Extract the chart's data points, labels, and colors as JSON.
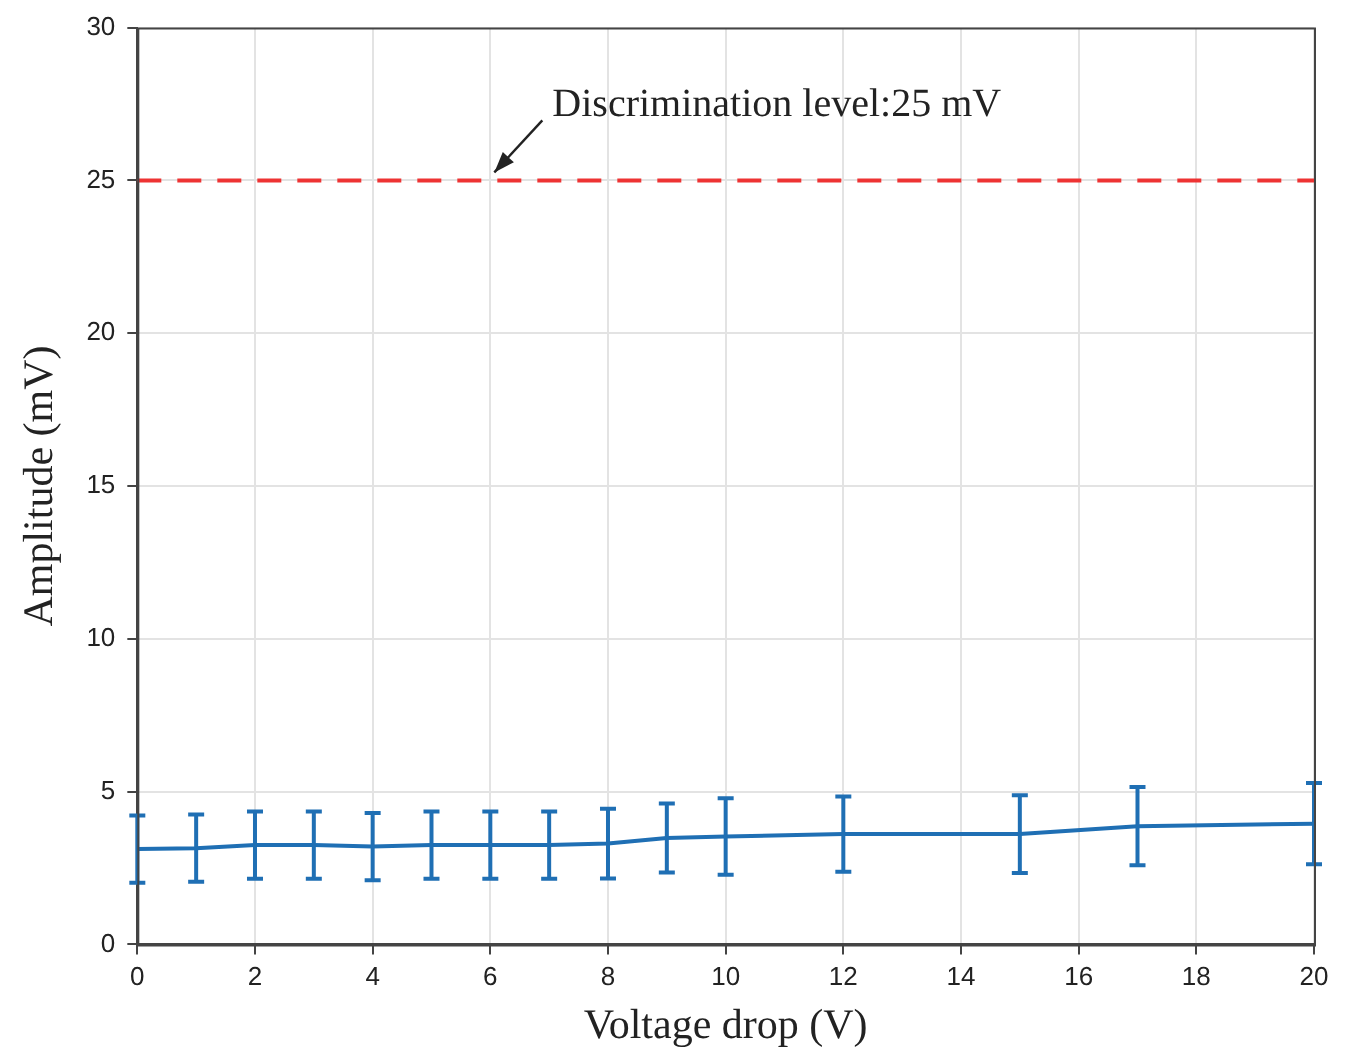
{
  "chart_data": {
    "type": "line",
    "xlabel": "Voltage drop (V)",
    "ylabel": "Amplitude (mV)",
    "x": [
      0,
      1,
      2,
      3,
      4,
      5,
      6,
      7,
      8,
      9,
      10,
      12,
      15,
      17,
      20
    ],
    "series": [
      {
        "color": "#1f6fb4",
        "values": [
          3.12,
          3.15,
          3.25,
          3.25,
          3.2,
          3.25,
          3.25,
          3.25,
          3.3,
          3.48,
          3.53,
          3.61,
          3.61,
          3.87,
          3.95
        ],
        "errors": [
          1.1,
          1.1,
          1.1,
          1.1,
          1.1,
          1.1,
          1.1,
          1.1,
          1.14,
          1.13,
          1.25,
          1.23,
          1.27,
          1.28,
          1.33
        ]
      }
    ],
    "xlim": [
      0,
      20
    ],
    "xticks": [
      0,
      2,
      4,
      6,
      8,
      10,
      12,
      14,
      16,
      18,
      20
    ],
    "ylim": [
      0,
      30
    ],
    "yticks": [
      0,
      5,
      10,
      15,
      20,
      25,
      30
    ],
    "ref_lines": [
      {
        "axis": "y",
        "value": 25,
        "color": "#ee3333",
        "line_style": "dashed"
      }
    ],
    "annotations": [
      {
        "text": "Discrimination level:25 mV",
        "x": 6,
        "y": 25
      }
    ],
    "grid": true,
    "legend": false,
    "marker": "none",
    "line_style": "solid"
  }
}
